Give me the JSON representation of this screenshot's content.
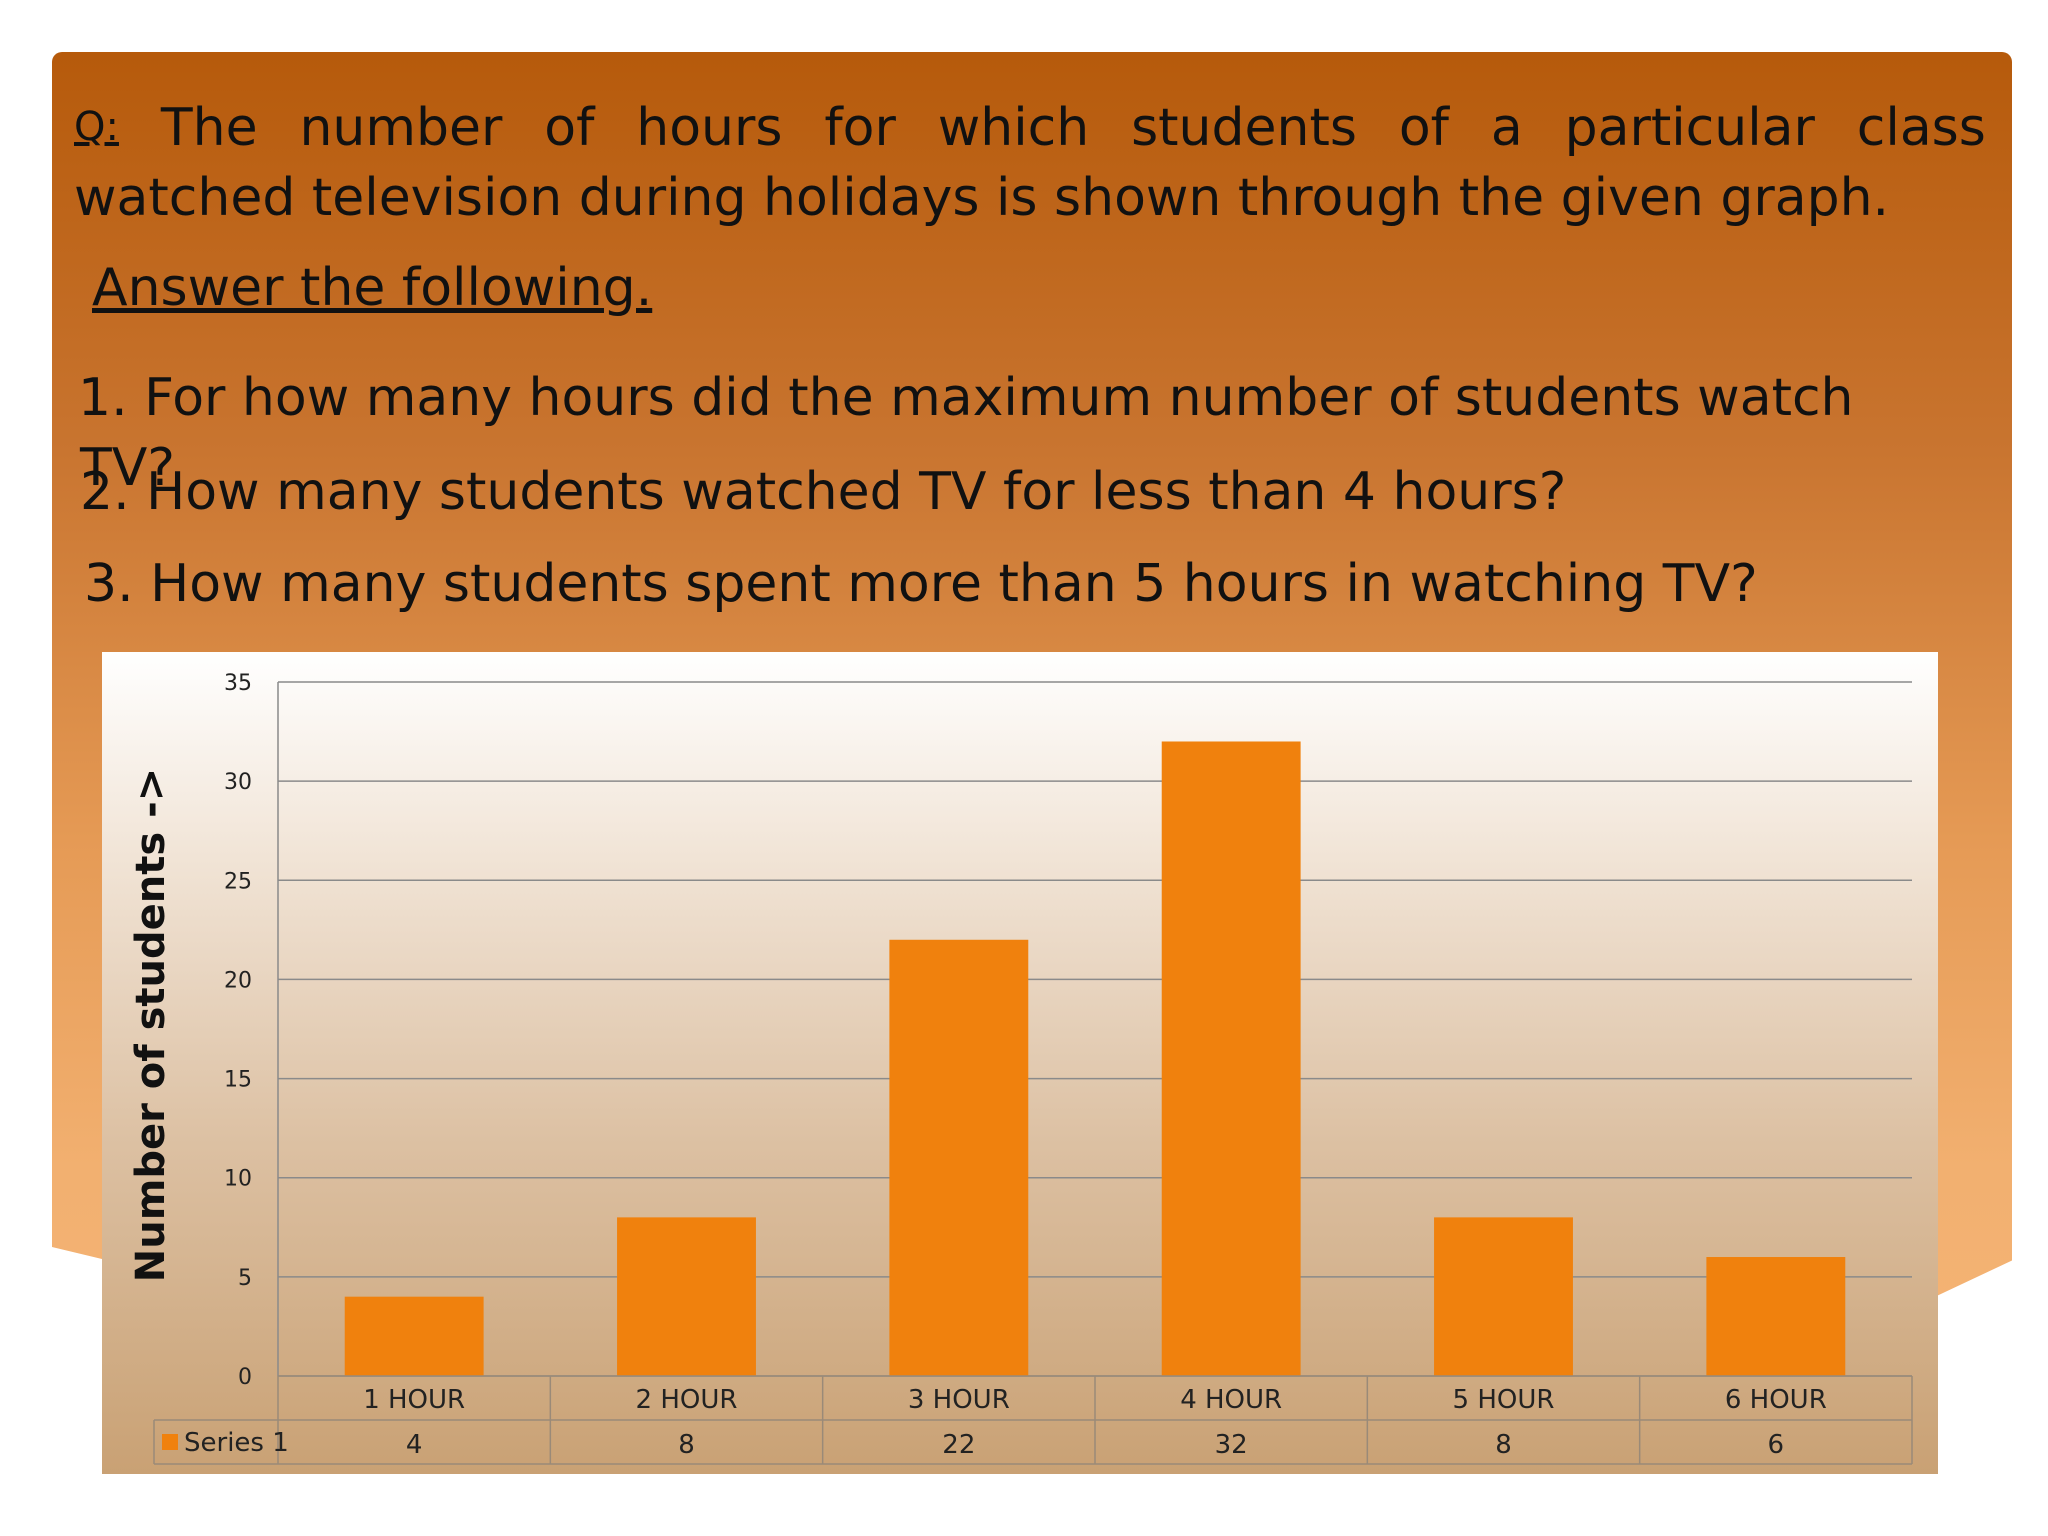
{
  "question": {
    "prefix": "Q:",
    "line1_words": [
      "The",
      "number",
      "of",
      "hours",
      "for",
      "which",
      "students",
      "of",
      "a",
      "particular",
      "class"
    ],
    "line2": "watched television  during holidays is shown through the given graph.",
    "answer_heading": "Answer the following.",
    "items": [
      "1.  For how many hours did the maximum number of students watch",
      "TV?",
      "2. How many students watched TV for less than 4 hours?",
      "3. How many students spent more than 5 hours in watching TV?"
    ]
  },
  "colors": {
    "bar": "#f0810d",
    "grid": "#8a8a8a",
    "table_border": "#9a8a78"
  },
  "chart_data": {
    "type": "bar",
    "categories": [
      "1 HOUR",
      "2 HOUR",
      "3 HOUR",
      "4 HOUR",
      "5 HOUR",
      "6 HOUR"
    ],
    "series": [
      {
        "name": "Series 1",
        "values": [
          4,
          8,
          22,
          32,
          8,
          6
        ]
      }
    ],
    "ylabel": "Number of students ->",
    "yticks": [
      0,
      5,
      10,
      15,
      20,
      25,
      30,
      35
    ],
    "ylim": [
      0,
      35
    ],
    "grid": true,
    "data_table": true
  }
}
